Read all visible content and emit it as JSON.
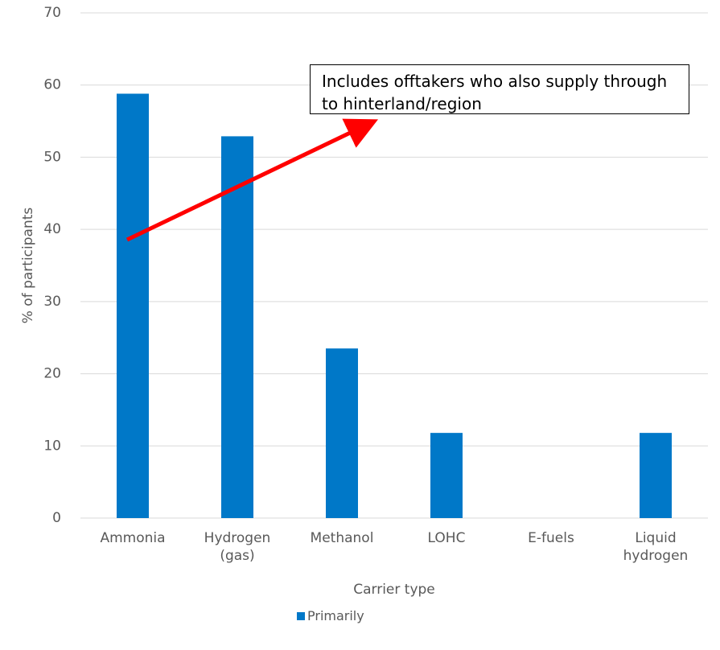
{
  "chart_data": {
    "type": "bar",
    "categories": [
      "Ammonia",
      "Hydrogen (gas)",
      "Methanol",
      "LOHC",
      "E-fuels",
      "Liquid hydrogen"
    ],
    "series": [
      {
        "name": "Primarily",
        "color": "#0078c8",
        "values": [
          58.8,
          52.9,
          23.5,
          11.8,
          0,
          11.8
        ]
      }
    ],
    "ylim": [
      0,
      70
    ],
    "yticks": [
      0,
      10,
      20,
      30,
      40,
      50,
      60,
      70
    ],
    "grid": true,
    "y_label": "% of participants",
    "x_label": "Carrier type",
    "annotation": "Includes offtakers who also supply through to hinterland/region",
    "legend": "bottom"
  }
}
